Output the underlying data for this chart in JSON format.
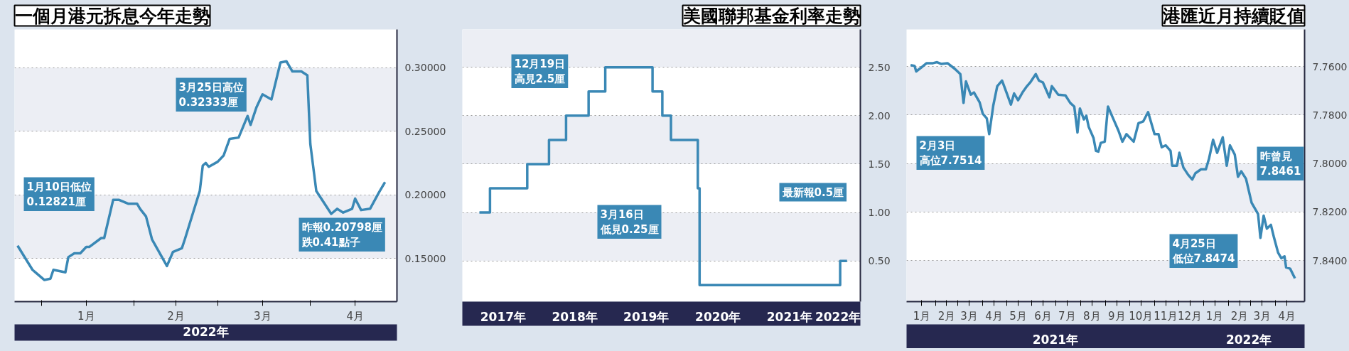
{
  "chart_data": [
    {
      "type": "line",
      "title": "一個月港元拆息今年走勢",
      "grid": "y",
      "line_style": "solid",
      "x": [
        "2021-12-24",
        "2021-12-29",
        "2021-12-30",
        "2022-01-02",
        "2022-01-04",
        "2022-01-05",
        "2022-01-09",
        "2022-01-10",
        "2022-01-12",
        "2022-01-14",
        "2022-01-16",
        "2022-01-17",
        "2022-01-21",
        "2022-01-22",
        "2022-01-25",
        "2022-01-27",
        "2022-01-30",
        "2022-02-02",
        "2022-02-03",
        "2022-02-05",
        "2022-02-07",
        "2022-02-12",
        "2022-02-14",
        "2022-02-16",
        "2022-02-17",
        "2022-02-18",
        "2022-02-23",
        "2022-02-24",
        "2022-02-25",
        "2022-02-26",
        "2022-03-01",
        "2022-03-03",
        "2022-03-05",
        "2022-03-08",
        "2022-03-11",
        "2022-03-12",
        "2022-03-14",
        "2022-03-16",
        "2022-03-19",
        "2022-03-22",
        "2022-03-24",
        "2022-03-25",
        "2022-03-26",
        "2022-03-29",
        "2022-03-31",
        "2022-04-01",
        "2022-04-03",
        "2022-04-08",
        "2022-04-10",
        "2022-04-12",
        "2022-04-15",
        "2022-04-16",
        "2022-04-18",
        "2022-04-21",
        "2022-04-24",
        "2022-04-26"
      ],
      "series": [
        {
          "color": "#3a88b5",
          "values": [
            0.16,
            0.141,
            0.139,
            0.133,
            0.134,
            0.141,
            0.139,
            0.151,
            0.154,
            0.154,
            0.159,
            0.159,
            0.166,
            0.166,
            0.196,
            0.196,
            0.193,
            0.193,
            0.189,
            0.183,
            0.165,
            0.144,
            0.155,
            0.157,
            0.158,
            0.165,
            0.203,
            0.223,
            0.225,
            0.222,
            0.226,
            0.231,
            0.244,
            0.245,
            0.262,
            0.255,
            0.269,
            0.279,
            0.275,
            0.304,
            0.305,
            0.301,
            0.297,
            0.297,
            0.294,
            0.24,
            0.203,
            0.185,
            0.189,
            0.186,
            0.189,
            0.197,
            0.188,
            0.189,
            0.202,
            0.21
          ]
        }
      ],
      "xlim": [
        "2021-12-23",
        "2022-04-30"
      ],
      "xticks": [
        {
          "value": "2022-01-01",
          "label": null
        },
        {
          "value": "2022-01-16",
          "label": "1月"
        },
        {
          "value": "2022-02-01",
          "label": null
        },
        {
          "value": "2022-02-15",
          "label": "2月"
        },
        {
          "value": "2022-03-01",
          "label": null
        },
        {
          "value": "2022-03-16",
          "label": "3月"
        },
        {
          "value": "2022-04-01",
          "label": null
        },
        {
          "value": "2022-04-16",
          "label": "4月"
        }
      ],
      "xlabel": "2022年",
      "ylim": [
        0.116,
        0.33
      ],
      "yticks": [
        {
          "value": 0.15,
          "label": "0.15000"
        },
        {
          "value": 0.2,
          "label": "0.20000"
        },
        {
          "value": 0.25,
          "label": "0.25000"
        },
        {
          "value": 0.3,
          "label": "0.30000"
        }
      ],
      "annotations": [
        "1月10日低位0.12821厘",
        "3月25日高位0.32333厘",
        "昨報0.20798厘跌0.41點子"
      ]
    },
    {
      "type": "step",
      "title": "美國聯邦基金利率走勢",
      "grid": "y",
      "line_style": "solid",
      "x": [
        "2017-03-02",
        "2017-04-25",
        "2017-11-01",
        "2018-02-20",
        "2018-05-18",
        "2018-09-10",
        "2018-12-04",
        "2019-08-02",
        "2019-09-21",
        "2019-11-04",
        "2020-03-20",
        "2020-03-29",
        "2022-03-16",
        "2022-04-20"
      ],
      "series": [
        {
          "color": "#3a88b5",
          "values": [
            1.0,
            1.25,
            1.5,
            1.75,
            2.0,
            2.25,
            2.5,
            2.25,
            2.0,
            1.75,
            1.25,
            0.25,
            0.5,
            0.5
          ]
        }
      ],
      "xlim": [
        "2016-12-05",
        "2022-06-27"
      ],
      "xticks": [
        {
          "value": "2017-07-01",
          "label": "2017年"
        },
        {
          "value": "2018-07-01",
          "label": "2018年"
        },
        {
          "value": "2019-07-01",
          "label": "2019年"
        },
        {
          "value": "2020-07-01",
          "label": "2020年"
        },
        {
          "value": "2021-07-01",
          "label": "2021年"
        },
        {
          "value": "2022-03-05",
          "label": "2022年"
        }
      ],
      "ylim": [
        0.08,
        2.89
      ],
      "yticks": [
        {
          "value": 0.5,
          "label": "0.50"
        },
        {
          "value": 1.0,
          "label": "1.00"
        },
        {
          "value": 1.5,
          "label": "1.50"
        },
        {
          "value": 2.0,
          "label": "2.00"
        },
        {
          "value": 2.5,
          "label": "2.50"
        }
      ],
      "annotations": [
        "12月19日高見2.5厘",
        "3月16日低見0.25厘",
        "最新報0.5厘"
      ]
    },
    {
      "type": "line",
      "title": "港匯近月持續貶值",
      "grid": "y",
      "line_style": "solid",
      "x": [
        "2021-01-01",
        "2021-01-06",
        "2021-01-08",
        "2021-01-14",
        "2021-01-21",
        "2021-01-29",
        "2021-02-03",
        "2021-02-08",
        "2021-02-16",
        "2021-02-25",
        "2021-03-04",
        "2021-03-08",
        "2021-03-11",
        "2021-03-17",
        "2021-03-21",
        "2021-03-28",
        "2021-04-01",
        "2021-04-06",
        "2021-04-09",
        "2021-04-14",
        "2021-04-19",
        "2021-04-25",
        "2021-05-01",
        "2021-05-06",
        "2021-05-10",
        "2021-05-15",
        "2021-05-21",
        "2021-05-26",
        "2021-05-30",
        "2021-06-06",
        "2021-06-10",
        "2021-06-15",
        "2021-06-23",
        "2021-06-26",
        "2021-07-04",
        "2021-07-13",
        "2021-07-19",
        "2021-07-24",
        "2021-07-28",
        "2021-07-31",
        "2021-08-05",
        "2021-08-08",
        "2021-08-11",
        "2021-08-17",
        "2021-08-20",
        "2021-08-23",
        "2021-08-26",
        "2021-08-31",
        "2021-09-04",
        "2021-09-10",
        "2021-09-17",
        "2021-09-22",
        "2021-09-27",
        "2021-10-06",
        "2021-10-12",
        "2021-10-18",
        "2021-10-24",
        "2021-11-01",
        "2021-11-06",
        "2021-11-10",
        "2021-11-15",
        "2021-11-21",
        "2021-11-23",
        "2021-11-29",
        "2021-12-02",
        "2021-12-07",
        "2021-12-13",
        "2021-12-18",
        "2021-12-22",
        "2021-12-29",
        "2022-01-04",
        "2022-01-08",
        "2022-01-13",
        "2022-01-18",
        "2022-01-25",
        "2022-01-30",
        "2022-02-03",
        "2022-02-09",
        "2022-02-13",
        "2022-02-17",
        "2022-02-23",
        "2022-03-02",
        "2022-03-10",
        "2022-03-13",
        "2022-03-17",
        "2022-03-21",
        "2022-03-26",
        "2022-03-30",
        "2022-04-04",
        "2022-04-08",
        "2022-04-12",
        "2022-04-14",
        "2022-04-19",
        "2022-04-25"
      ],
      "series": [
        {
          "color": "#3a88b5",
          "values": [
            7.7594,
            7.7597,
            7.762,
            7.7605,
            7.7586,
            7.7586,
            7.7582,
            7.7589,
            7.7586,
            7.7609,
            7.7631,
            7.775,
            7.7661,
            7.7716,
            7.7707,
            7.7747,
            7.7795,
            7.7814,
            7.7879,
            7.7762,
            7.7681,
            7.7658,
            7.7711,
            7.7757,
            7.7711,
            7.7739,
            7.7704,
            7.7681,
            7.7666,
            7.7631,
            7.7658,
            7.7666,
            7.7727,
            7.7681,
            7.7716,
            7.7719,
            7.775,
            7.7765,
            7.7872,
            7.7773,
            7.7818,
            7.7803,
            7.7849,
            7.7895,
            7.7948,
            7.7951,
            7.7915,
            7.791,
            7.7765,
            7.7811,
            7.7864,
            7.791,
            7.7879,
            7.791,
            7.7834,
            7.7826,
            7.7788,
            7.7879,
            7.7879,
            7.7933,
            7.7925,
            7.7948,
            7.8009,
            7.8009,
            7.7956,
            7.8017,
            7.8047,
            7.8066,
            7.804,
            7.8024,
            7.8024,
            7.7979,
            7.7902,
            7.7956,
            7.7892,
            7.8009,
            7.7925,
            7.7963,
            7.8055,
            7.8032,
            7.8063,
            7.8162,
            7.8208,
            7.8307,
            7.8215,
            7.8269,
            7.8253,
            7.8307,
            7.8368,
            7.8391,
            7.8383,
            7.8429,
            7.8434,
            7.8474
          ]
        }
      ],
      "xlim": [
        "2020-12-27",
        "2022-05-07"
      ],
      "xticks": [
        {
          "value": "2021-01-15",
          "label": "1月"
        },
        {
          "value": "2021-02-01",
          "label": null
        },
        {
          "value": "2021-02-15",
          "label": "2月"
        },
        {
          "value": "2021-03-01",
          "label": null
        },
        {
          "value": "2021-03-15",
          "label": "3月"
        },
        {
          "value": "2021-04-01",
          "label": null
        },
        {
          "value": "2021-04-15",
          "label": "4月"
        },
        {
          "value": "2021-05-01",
          "label": null
        },
        {
          "value": "2021-05-15",
          "label": "5月"
        },
        {
          "value": "2021-06-01",
          "label": null
        },
        {
          "value": "2021-06-15",
          "label": "6月"
        },
        {
          "value": "2021-07-01",
          "label": null
        },
        {
          "value": "2021-07-15",
          "label": "7月"
        },
        {
          "value": "2021-08-01",
          "label": null
        },
        {
          "value": "2021-08-15",
          "label": "8月"
        },
        {
          "value": "2021-09-01",
          "label": null
        },
        {
          "value": "2021-09-15",
          "label": "9月"
        },
        {
          "value": "2021-10-01",
          "label": null
        },
        {
          "value": "2021-10-15",
          "label": "10月"
        },
        {
          "value": "2021-11-01",
          "label": null
        },
        {
          "value": "2021-11-15",
          "label": "11月"
        },
        {
          "value": "2021-12-01",
          "label": null
        },
        {
          "value": "2021-12-15",
          "label": "12月"
        },
        {
          "value": "2022-01-01",
          "label": null
        },
        {
          "value": "2022-01-15",
          "label": "1月"
        },
        {
          "value": "2022-02-01",
          "label": null
        },
        {
          "value": "2022-02-15",
          "label": "2月"
        },
        {
          "value": "2022-03-01",
          "label": null
        },
        {
          "value": "2022-03-15",
          "label": "3月"
        },
        {
          "value": "2022-04-01",
          "label": null
        },
        {
          "value": "2022-04-15",
          "label": "4月"
        }
      ],
      "x2lim": [
        "2020-12-23",
        "2022-05-07"
      ],
      "x2ticks": [
        {
          "value": "2021-06-28",
          "label": "2021年"
        },
        {
          "value": "2022-02-26",
          "label": "2022年"
        }
      ],
      "ylim": [
        7.857,
        7.7447
      ],
      "yticks": [
        {
          "value": 7.76,
          "label": "7.7600"
        },
        {
          "value": 7.78,
          "label": "7.7800"
        },
        {
          "value": 7.8,
          "label": "7.8000"
        },
        {
          "value": 7.82,
          "label": "7.8200"
        },
        {
          "value": 7.84,
          "label": "7.8400"
        }
      ],
      "annotations": [
        "2月3日高位7.7514",
        "昨曾見7.8461",
        "4月25日低位7.8474"
      ]
    }
  ]
}
